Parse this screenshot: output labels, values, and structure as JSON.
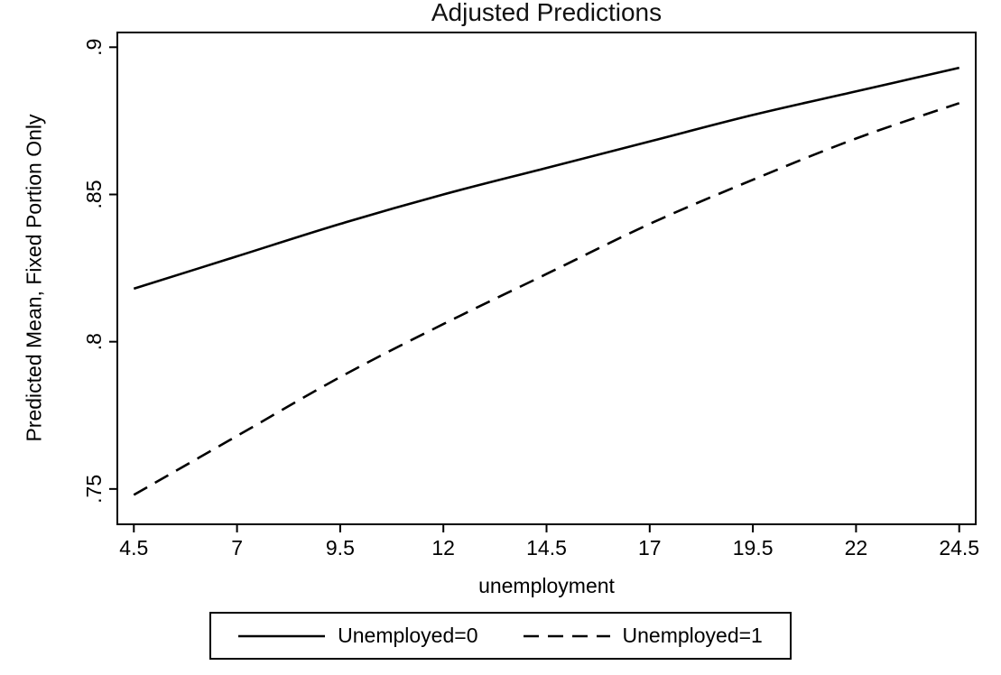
{
  "chart_data": {
    "type": "line",
    "title": "Adjusted Predictions",
    "xlabel": "unemployment",
    "ylabel": "Predicted Mean, Fixed Portion Only",
    "x": [
      4.5,
      7,
      9.5,
      12,
      14.5,
      17,
      19.5,
      22,
      24.5
    ],
    "series": [
      {
        "name": "Unemployed=0",
        "style": "solid",
        "values": [
          0.818,
          0.829,
          0.84,
          0.85,
          0.859,
          0.868,
          0.877,
          0.885,
          0.893
        ]
      },
      {
        "name": "Unemployed=1",
        "style": "dashed",
        "values": [
          0.748,
          0.768,
          0.788,
          0.806,
          0.823,
          0.84,
          0.855,
          0.869,
          0.881
        ]
      }
    ],
    "x_ticks": {
      "values": [
        4.5,
        7,
        9.5,
        12,
        14.5,
        17,
        19.5,
        22,
        24.5
      ],
      "labels": [
        "4.5",
        "7",
        "9.5",
        "12",
        "14.5",
        "17",
        "19.5",
        "22",
        "24.5"
      ]
    },
    "y_ticks": {
      "values": [
        0.75,
        0.8,
        0.85,
        0.9
      ],
      "labels": [
        ".75",
        ".8",
        ".85",
        ".9"
      ]
    },
    "xlim": [
      4.1,
      24.9
    ],
    "ylim": [
      0.738,
      0.905
    ],
    "grid": false,
    "legend": {
      "position": "bottom",
      "entries": [
        "Unemployed=0",
        "Unemployed=1"
      ]
    },
    "colors": {
      "line": "#000000",
      "background": "#ffffff",
      "border": "#000000"
    }
  }
}
